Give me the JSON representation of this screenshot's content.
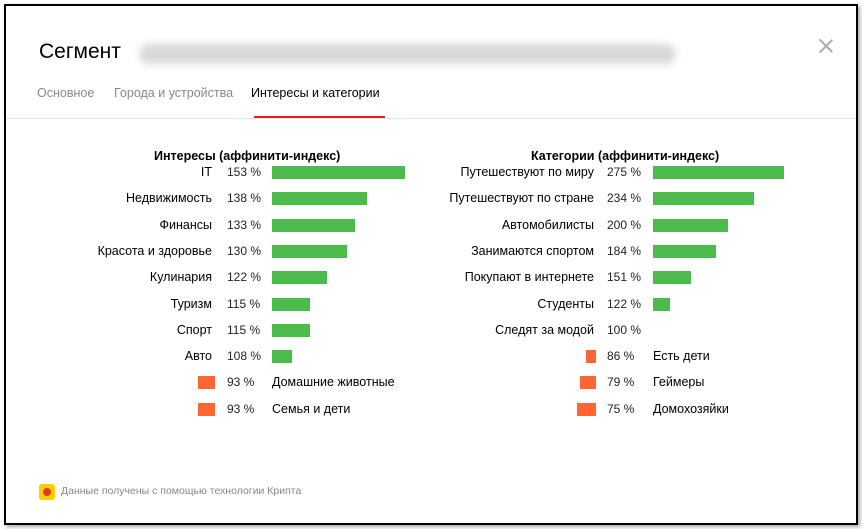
{
  "header": {
    "title": "Сегмент",
    "close_icon": "close-icon"
  },
  "tabs": [
    {
      "label": "Основное",
      "active": false
    },
    {
      "label": "Города и устройства",
      "active": false
    },
    {
      "label": "Интересы и категории",
      "active": true
    }
  ],
  "colors": {
    "positive": "#4cbb4c",
    "negative": "#ff6633",
    "active_tab": "#e02020"
  },
  "interests": {
    "title": "Интересы (аффинити-индекс)",
    "items": [
      {
        "label": "IT",
        "pct": "153 %",
        "value": 153
      },
      {
        "label": "Недвижимость",
        "pct": "138 %",
        "value": 138
      },
      {
        "label": "Финансы",
        "pct": "133 %",
        "value": 133
      },
      {
        "label": "Красота и здоровье",
        "pct": "130 %",
        "value": 130
      },
      {
        "label": "Кулинария",
        "pct": "122 %",
        "value": 122
      },
      {
        "label": "Туризм",
        "pct": "115 %",
        "value": 115
      },
      {
        "label": "Спорт",
        "pct": "115 %",
        "value": 115
      },
      {
        "label": "Авто",
        "pct": "108 %",
        "value": 108
      },
      {
        "label": "Домашние животные",
        "pct": "93 %",
        "value": 93
      },
      {
        "label": "Семья и дети",
        "pct": "93 %",
        "value": 93
      }
    ]
  },
  "categories": {
    "title": "Категории (аффинити-индекс)",
    "items": [
      {
        "label": "Путешествуют по миру",
        "pct": "275 %",
        "value": 275
      },
      {
        "label": "Путешествуют по стране",
        "pct": "234 %",
        "value": 234
      },
      {
        "label": "Автомобилисты",
        "pct": "200 %",
        "value": 200
      },
      {
        "label": "Занимаются спортом",
        "pct": "184 %",
        "value": 184
      },
      {
        "label": "Покупают в интернете",
        "pct": "151 %",
        "value": 151
      },
      {
        "label": "Студенты",
        "pct": "122 %",
        "value": 122
      },
      {
        "label": "Следят за модой",
        "pct": "100 %",
        "value": 100
      },
      {
        "label": "Есть дети",
        "pct": "86 %",
        "value": 86
      },
      {
        "label": "Геймеры",
        "pct": "79 %",
        "value": 79
      },
      {
        "label": "Домохозяйки",
        "pct": "75 %",
        "value": 75
      }
    ]
  },
  "footer": {
    "text": "Данные получены с помощью технологии Крипта",
    "icon": "kripta-logo-icon"
  }
}
